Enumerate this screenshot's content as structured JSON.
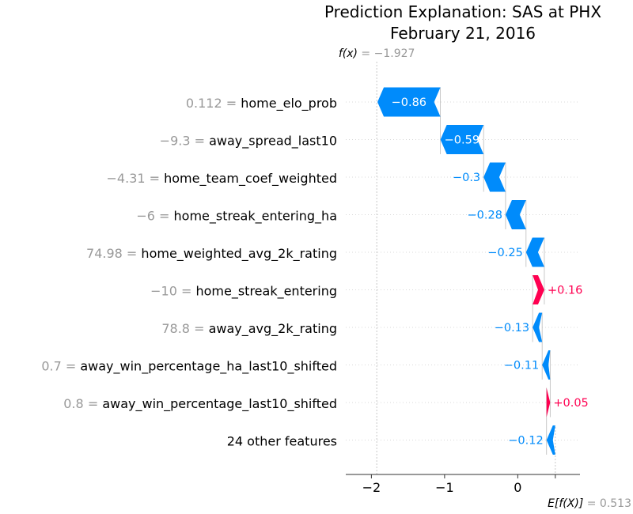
{
  "chart_data": {
    "type": "waterfall",
    "title": [
      "Prediction Explanation: SAS at PHX",
      "February 21, 2016"
    ],
    "xlim": [
      -2.35,
      0.85
    ],
    "xticks": [
      -2,
      -1,
      0
    ],
    "xtick_labels": [
      "−2",
      "−1",
      "0"
    ],
    "fx_value": -1.927,
    "fx_math": "f(x)",
    "fx_text": "= −1.927",
    "expected_value": 0.513,
    "expected_math": "E[f(X)]",
    "expected_text": "= 0.513",
    "features": [
      {
        "value": "0.112",
        "name": "home_elo_prob",
        "contribution": -0.86,
        "label": "−0.86"
      },
      {
        "value": "−9.3",
        "name": "away_spread_last10",
        "contribution": -0.59,
        "label": "−0.59"
      },
      {
        "value": "−4.31",
        "name": "home_team_coef_weighted",
        "contribution": -0.3,
        "label": "−0.3"
      },
      {
        "value": "−6",
        "name": "home_streak_entering_ha",
        "contribution": -0.28,
        "label": "−0.28"
      },
      {
        "value": "74.98",
        "name": "home_weighted_avg_2k_rating",
        "contribution": -0.25,
        "label": "−0.25"
      },
      {
        "value": "−10",
        "name": "home_streak_entering",
        "contribution": 0.16,
        "label": "+0.16"
      },
      {
        "value": "78.8",
        "name": "away_avg_2k_rating",
        "contribution": -0.13,
        "label": "−0.13"
      },
      {
        "value": "0.7",
        "name": "away_win_percentage_ha_last10_shifted",
        "contribution": -0.11,
        "label": "−0.11"
      },
      {
        "value": "0.8",
        "name": "away_win_percentage_last10_shifted",
        "contribution": 0.05,
        "label": "+0.05"
      },
      {
        "value": "",
        "name": "24 other features",
        "contribution": -0.12,
        "label": "−0.12"
      }
    ],
    "colors": {
      "positive": "#ff0051",
      "negative": "#008bfb",
      "gridline": "#cccccc",
      "axis": "#333333"
    }
  }
}
